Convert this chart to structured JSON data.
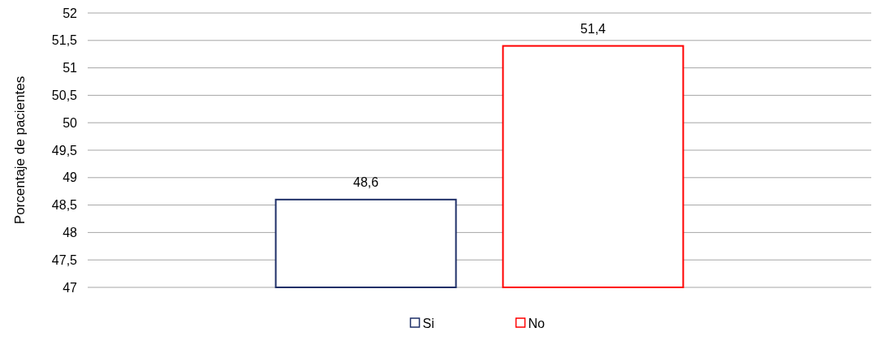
{
  "chart_data": {
    "type": "bar",
    "categories": [
      null
    ],
    "ylabel": "Porcentaje de pacientes",
    "series": [
      {
        "name": "Si",
        "color": "#1f3068",
        "values": [
          48.6
        ],
        "value_labels": [
          "48,6"
        ]
      },
      {
        "name": "No",
        "color": "#ff0000",
        "values": [
          51.4
        ],
        "value_labels": [
          "51,4"
        ]
      }
    ],
    "ylim": [
      47,
      52
    ],
    "yticks": [
      47,
      {
        "value": 47.5,
        "label": "47,5"
      },
      48,
      {
        "value": 48.5,
        "label": "48,5"
      },
      49,
      {
        "value": 49.5,
        "label": "49,5"
      },
      50,
      {
        "value": 50.5,
        "label": "50,5"
      },
      51,
      {
        "value": 51.5,
        "label": "51,5"
      },
      52
    ],
    "grid": "y",
    "legend": "bottom"
  }
}
